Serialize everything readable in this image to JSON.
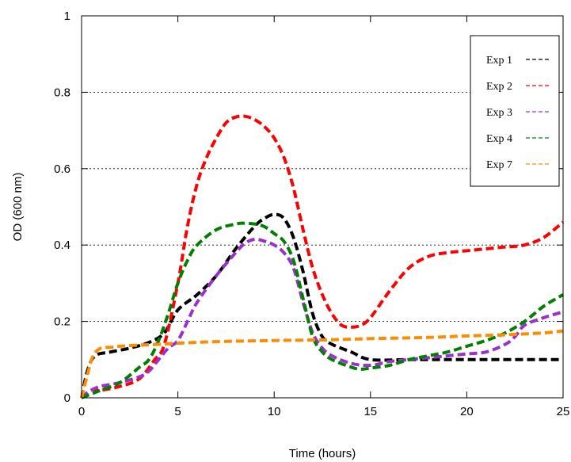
{
  "chart_data": {
    "type": "line",
    "title": "",
    "xlabel": "Time (hours)",
    "ylabel": "OD (600 nm)",
    "xlim": [
      0,
      25
    ],
    "ylim": [
      0,
      1
    ],
    "xticks": [
      0,
      5,
      10,
      15,
      20,
      25
    ],
    "xtick_labels": [
      "0",
      "5",
      "10",
      "15",
      "20",
      "25"
    ],
    "yticks": [
      0,
      0.2,
      0.4,
      0.6,
      0.8,
      1
    ],
    "ytick_labels": [
      "0",
      "0.2",
      "0.4",
      "0.6",
      "0.8",
      "1"
    ],
    "grid": "horizontal dotted",
    "legend_position": "top-right",
    "series": [
      {
        "name": "Exp 1",
        "color": "#000000",
        "x": [
          0,
          0.3,
          0.7,
          1.5,
          2.5,
          3.5,
          4.3,
          5,
          6,
          7,
          8,
          9,
          9.5,
          10,
          10.5,
          11,
          11.5,
          12,
          12.5,
          13,
          14,
          15,
          17,
          20,
          22,
          25
        ],
        "y": [
          0.0,
          0.07,
          0.11,
          0.12,
          0.13,
          0.145,
          0.17,
          0.23,
          0.27,
          0.32,
          0.39,
          0.45,
          0.47,
          0.48,
          0.47,
          0.42,
          0.33,
          0.22,
          0.16,
          0.14,
          0.12,
          0.1,
          0.1,
          0.1,
          0.1,
          0.1
        ]
      },
      {
        "name": "Exp 2",
        "color": "#ff0000",
        "x": [
          0,
          0.5,
          1,
          2,
          3,
          3.8,
          4.3,
          5,
          5.5,
          6,
          6.5,
          7,
          7.5,
          8,
          8.5,
          9,
          9.5,
          10,
          10.5,
          11,
          11.5,
          12,
          12.5,
          13,
          13.5,
          14,
          14.5,
          15,
          16,
          17,
          18,
          19,
          20,
          21,
          22,
          23,
          24,
          25
        ],
        "y": [
          0.0,
          0.02,
          0.02,
          0.03,
          0.05,
          0.1,
          0.14,
          0.3,
          0.45,
          0.56,
          0.63,
          0.68,
          0.72,
          0.735,
          0.737,
          0.728,
          0.71,
          0.68,
          0.63,
          0.55,
          0.44,
          0.34,
          0.27,
          0.22,
          0.19,
          0.185,
          0.19,
          0.21,
          0.28,
          0.34,
          0.37,
          0.38,
          0.385,
          0.39,
          0.395,
          0.4,
          0.42,
          0.46
        ]
      },
      {
        "name": "Exp 3",
        "color": "#9b30d0",
        "x": [
          0,
          0.5,
          1,
          2,
          3,
          3.5,
          4,
          4.5,
          5,
          5.5,
          6,
          7,
          8,
          8.5,
          9,
          9.5,
          10,
          10.5,
          11,
          11.5,
          12,
          12.5,
          13,
          14,
          15,
          16,
          17,
          18,
          19,
          20,
          21,
          22,
          22.5,
          23,
          24,
          25
        ],
        "y": [
          0.0,
          0.02,
          0.03,
          0.04,
          0.055,
          0.07,
          0.1,
          0.13,
          0.15,
          0.2,
          0.25,
          0.32,
          0.38,
          0.405,
          0.415,
          0.41,
          0.4,
          0.38,
          0.34,
          0.25,
          0.17,
          0.13,
          0.11,
          0.09,
          0.085,
          0.095,
          0.1,
          0.105,
          0.11,
          0.115,
          0.12,
          0.14,
          0.16,
          0.19,
          0.21,
          0.225
        ]
      },
      {
        "name": "Exp 4",
        "color": "#008000",
        "x": [
          0,
          0.5,
          1,
          2,
          3,
          3.5,
          4,
          4.5,
          5,
          5.5,
          6,
          7,
          8,
          8.5,
          9,
          9.5,
          10,
          10.5,
          11,
          11.5,
          12,
          12.5,
          13,
          14,
          14.5,
          15,
          16,
          17,
          18,
          19,
          20,
          21,
          22,
          23,
          24,
          25
        ],
        "y": [
          0.0,
          0.01,
          0.02,
          0.04,
          0.08,
          0.1,
          0.15,
          0.22,
          0.3,
          0.36,
          0.4,
          0.44,
          0.455,
          0.457,
          0.455,
          0.448,
          0.43,
          0.41,
          0.36,
          0.26,
          0.16,
          0.12,
          0.1,
          0.08,
          0.075,
          0.078,
          0.085,
          0.1,
          0.11,
          0.12,
          0.135,
          0.15,
          0.17,
          0.2,
          0.24,
          0.27
        ]
      },
      {
        "name": "Exp 7",
        "color": "#ff8c00",
        "x": [
          0,
          0.3,
          0.6,
          1,
          1.5,
          2,
          3,
          4,
          5,
          7,
          10,
          13,
          15,
          18,
          20,
          22,
          24,
          25
        ],
        "y": [
          0.0,
          0.06,
          0.11,
          0.13,
          0.132,
          0.135,
          0.138,
          0.14,
          0.143,
          0.147,
          0.15,
          0.152,
          0.155,
          0.158,
          0.162,
          0.165,
          0.17,
          0.175
        ]
      }
    ]
  }
}
